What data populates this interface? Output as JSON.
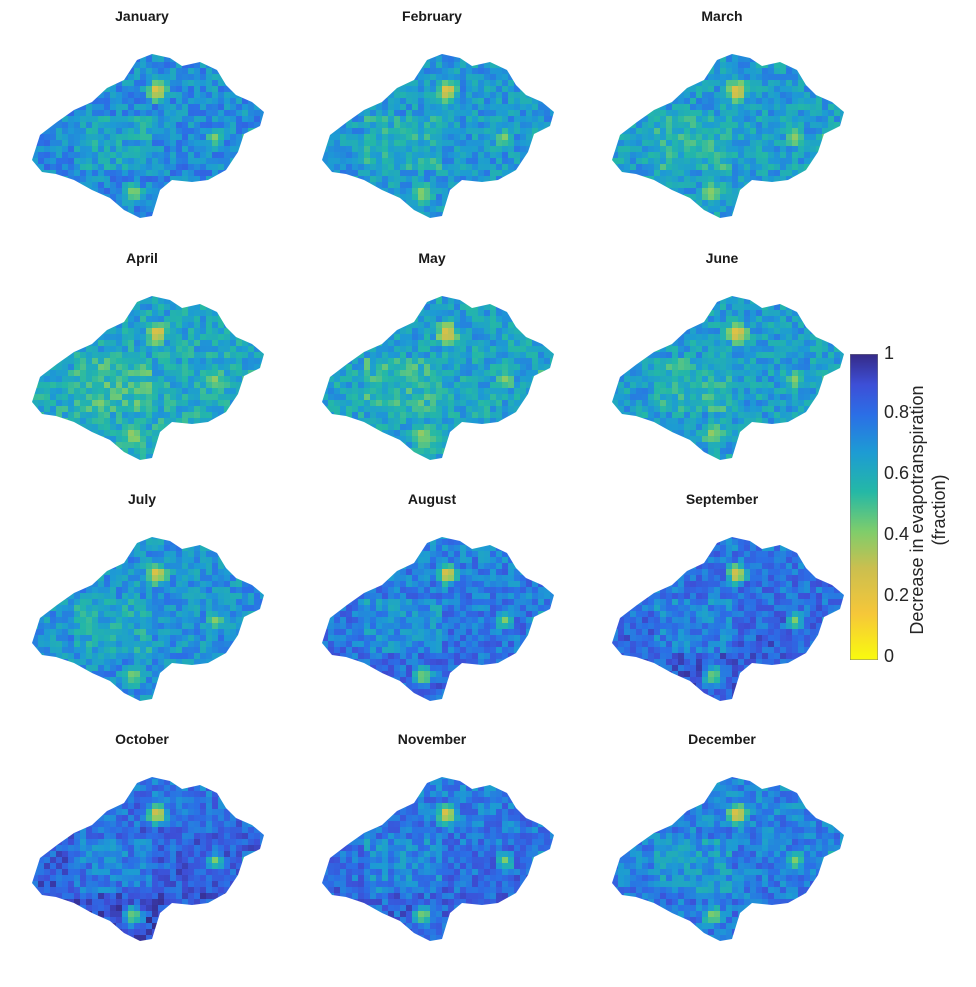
{
  "chart_data": {
    "type": "heatmap",
    "panels": [
      {
        "title": "January",
        "base": 0.72
      },
      {
        "title": "February",
        "base": 0.68
      },
      {
        "title": "March",
        "base": 0.66
      },
      {
        "title": "April",
        "base": 0.62
      },
      {
        "title": "May",
        "base": 0.64
      },
      {
        "title": "June",
        "base": 0.66
      },
      {
        "title": "July",
        "base": 0.7
      },
      {
        "title": "August",
        "base": 0.78
      },
      {
        "title": "September",
        "base": 0.82
      },
      {
        "title": "October",
        "base": 0.84
      },
      {
        "title": "November",
        "base": 0.8
      },
      {
        "title": "December",
        "base": 0.76
      }
    ],
    "colorbar": {
      "label_line1": "Decrease in evapotranspiration",
      "label_line2": "(fraction)",
      "ticks": [
        "1",
        "0.8",
        "0.6",
        "0.4",
        "0.2",
        "0"
      ],
      "range": [
        0,
        1
      ],
      "colormap": "parula"
    }
  },
  "colors": {
    "low": "#f9fb0e",
    "mid": "#1fb8b2",
    "high": "#352a87"
  }
}
